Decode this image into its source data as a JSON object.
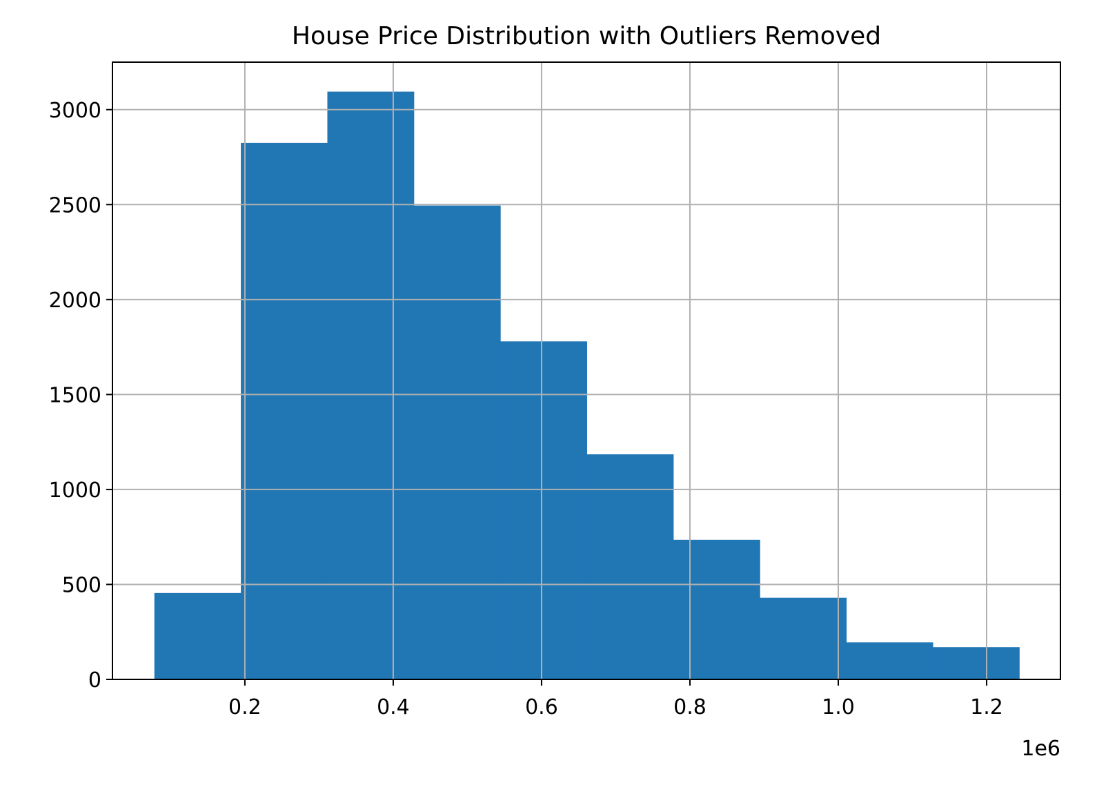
{
  "chart_data": {
    "type": "bar",
    "subtype": "histogram",
    "title": "House Price Distribution with Outliers Removed",
    "xlabel": "",
    "ylabel": "",
    "x_offset_label": "1e6",
    "bin_edges": [
      78000,
      194600,
      311200,
      427800,
      544400,
      661000,
      777600,
      894200,
      1010800,
      1127400,
      1244000
    ],
    "counts": [
      455,
      2825,
      3095,
      2495,
      1780,
      1185,
      735,
      430,
      195,
      170
    ],
    "xlim": [
      0.0215,
      1.2995
    ],
    "ylim": [
      0,
      3250
    ],
    "x_ticks": [
      0.2,
      0.4,
      0.6,
      0.8,
      1.0,
      1.2
    ],
    "x_tick_labels": [
      "0.2",
      "0.4",
      "0.6",
      "0.8",
      "1.0",
      "1.2"
    ],
    "y_ticks": [
      0,
      500,
      1000,
      1500,
      2000,
      2500,
      3000
    ],
    "y_tick_labels": [
      "0",
      "500",
      "1000",
      "1500",
      "2000",
      "2500",
      "3000"
    ],
    "grid": true,
    "bar_color": "#2077b4",
    "grid_color": "#b0b0b0"
  }
}
